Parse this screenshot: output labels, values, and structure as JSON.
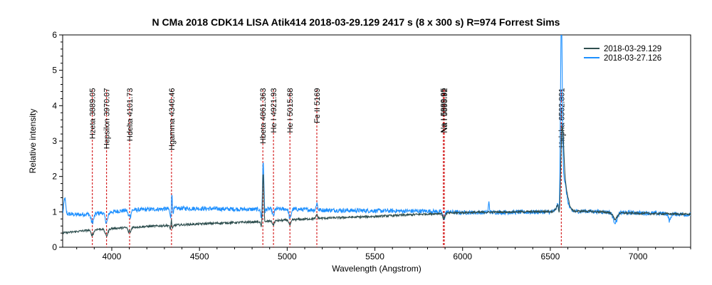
{
  "chart_data": {
    "type": "line",
    "title": "N CMa 2018 CDK14 LISA Atik414  2018-03-29.129   2417 s (8 x 300 s) R=974  Forrest Sims",
    "xlabel": "Wavelength (Angstrom)",
    "ylabel": "Relative intensity",
    "xlim": [
      3720,
      7300
    ],
    "ylim": [
      0,
      6
    ],
    "xticks": [
      4000,
      4500,
      5000,
      5500,
      6000,
      6500,
      7000
    ],
    "yticks": [
      0,
      1,
      2,
      3,
      4,
      5,
      6
    ],
    "grid": false,
    "legend_position": "top-right",
    "series": [
      {
        "name": "2018-03-29.129",
        "color": "#2f4f4f",
        "base": [
          [
            3720,
            0.4
          ],
          [
            3900,
            0.5
          ],
          [
            4100,
            0.56
          ],
          [
            4340,
            0.62
          ],
          [
            4600,
            0.68
          ],
          [
            4850,
            0.72
          ],
          [
            5000,
            0.77
          ],
          [
            5200,
            0.82
          ],
          [
            5500,
            0.87
          ],
          [
            5800,
            0.94
          ],
          [
            6000,
            0.98
          ],
          [
            6300,
            1.0
          ],
          [
            6500,
            1.01
          ],
          [
            6700,
            1.02
          ],
          [
            6900,
            0.97
          ],
          [
            7100,
            0.95
          ],
          [
            7300,
            0.93
          ]
        ],
        "noise": 0.03,
        "features": [
          [
            3889,
            -0.15,
            8
          ],
          [
            3970,
            -0.2,
            8
          ],
          [
            4101,
            -0.28,
            6
          ],
          [
            4101,
            0.2,
            3
          ],
          [
            4340,
            -0.25,
            6
          ],
          [
            4340,
            0.4,
            3
          ],
          [
            4861,
            -0.38,
            7
          ],
          [
            4863,
            1.75,
            4
          ],
          [
            4921,
            -0.12,
            5
          ],
          [
            5016,
            -0.15,
            6
          ],
          [
            5169,
            0.12,
            4
          ],
          [
            5893,
            -0.15,
            6
          ],
          [
            6553,
            -0.65,
            5
          ],
          [
            6568,
            1.55,
            8
          ],
          [
            6575,
            0.9,
            20
          ],
          [
            6870,
            -0.18,
            12
          ]
        ]
      },
      {
        "name": "2018-03-27.126",
        "color": "#1e90ff",
        "base": [
          [
            3720,
            0.95
          ],
          [
            3800,
            0.92
          ],
          [
            3900,
            0.95
          ],
          [
            4100,
            1.05
          ],
          [
            4400,
            1.1
          ],
          [
            4800,
            1.07
          ],
          [
            5000,
            1.08
          ],
          [
            5200,
            1.05
          ],
          [
            5500,
            1.03
          ],
          [
            5800,
            1.02
          ],
          [
            6000,
            0.98
          ],
          [
            6300,
            0.99
          ],
          [
            6500,
            1.0
          ],
          [
            6700,
            1.02
          ],
          [
            6900,
            0.98
          ],
          [
            7100,
            0.96
          ],
          [
            7300,
            0.92
          ]
        ],
        "noise": 0.06,
        "features": [
          [
            3732,
            0.45,
            5
          ],
          [
            3889,
            -0.25,
            8
          ],
          [
            3970,
            -0.28,
            8
          ],
          [
            4101,
            -0.35,
            6
          ],
          [
            4101,
            0.25,
            3
          ],
          [
            4340,
            -0.45,
            6
          ],
          [
            4342,
            0.85,
            3
          ],
          [
            4861,
            -0.6,
            7
          ],
          [
            4863,
            1.95,
            4
          ],
          [
            4921,
            -0.2,
            5
          ],
          [
            5016,
            -0.28,
            6
          ],
          [
            5169,
            0.2,
            4
          ],
          [
            5893,
            -0.2,
            6
          ],
          [
            6150,
            0.28,
            3
          ],
          [
            6553,
            -0.65,
            5
          ],
          [
            6563,
            4.7,
            5
          ],
          [
            6572,
            1.0,
            18
          ],
          [
            6870,
            -0.28,
            12
          ],
          [
            7180,
            -0.2,
            6
          ]
        ]
      }
    ],
    "annotations": [
      {
        "label": "Hzeta 3889.05",
        "x": 3889.05
      },
      {
        "label": "Hepsilon 3970.07",
        "x": 3970.07
      },
      {
        "label": "Hdelta 4101.73",
        "x": 4101.73
      },
      {
        "label": "Hgamma 4340.46",
        "x": 4340.46
      },
      {
        "label": "Hbeta 4861.363",
        "x": 4861.363
      },
      {
        "label": "He I 4921.93",
        "x": 4921.93
      },
      {
        "label": "He I 5015.68",
        "x": 5015.68
      },
      {
        "label": "Fe II 5169",
        "x": 5169
      },
      {
        "label": "Na I 5889.95",
        "x": 5889.95
      },
      {
        "label": "Na I 5895.92",
        "x": 5895.92
      },
      {
        "label": "Halpha 6562.801",
        "x": 6562.801
      }
    ],
    "annotation_color": "#d62728"
  }
}
